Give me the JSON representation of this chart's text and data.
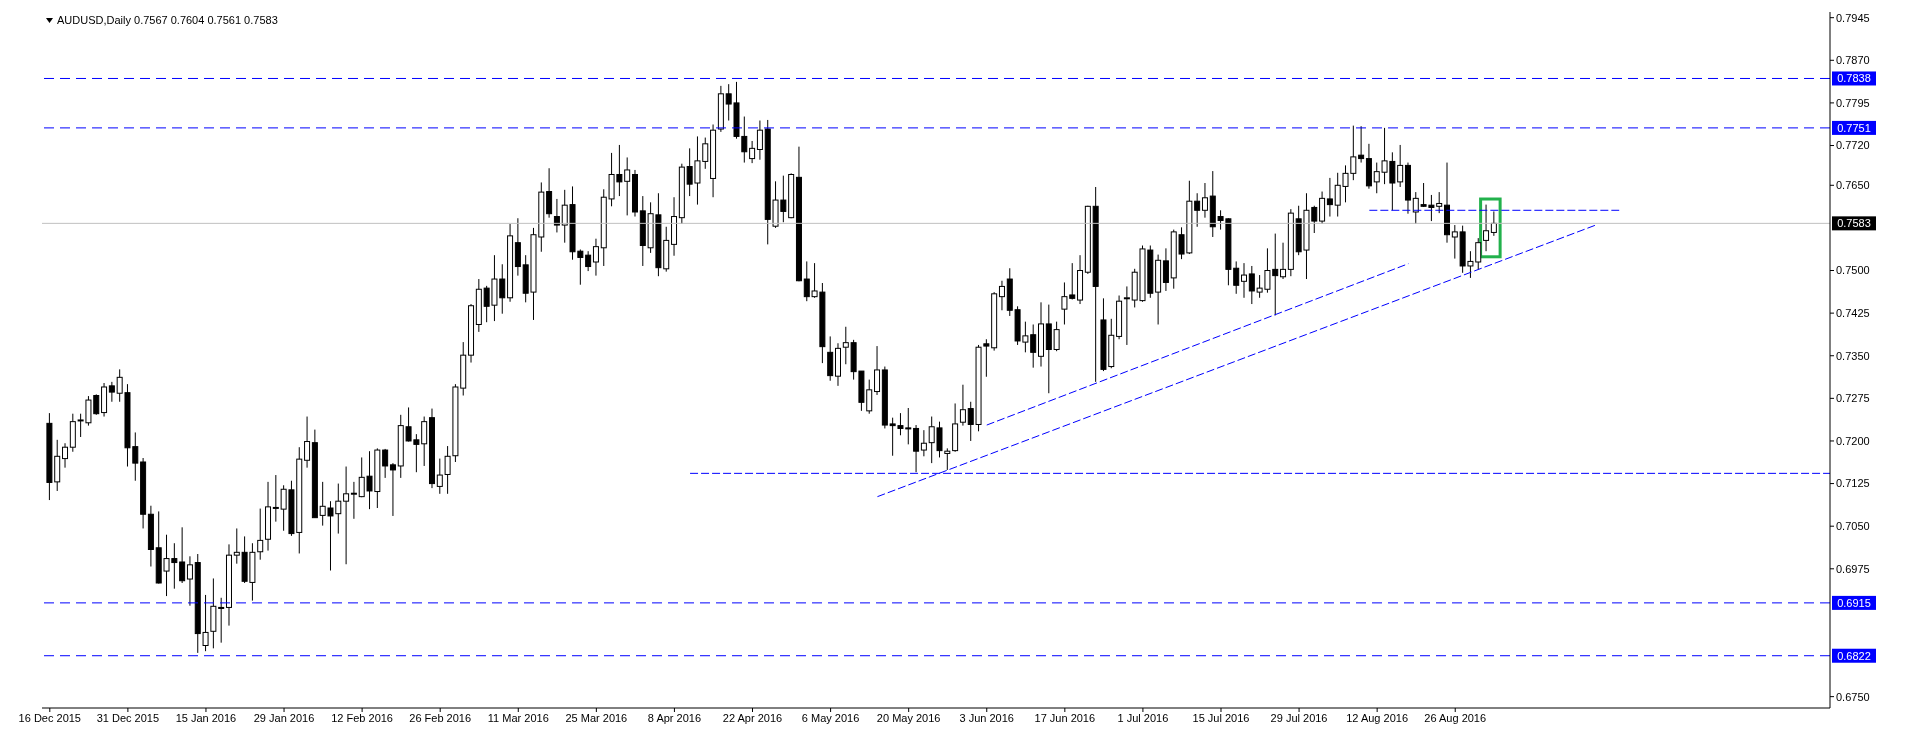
{
  "chart_data": {
    "type": "candlestick",
    "title": "AUDUSD,Daily 0.7567 0.7604 0.7561 0.7583",
    "color": "#000000",
    "categories": [
      "16 Dec 2015",
      null,
      null,
      null,
      null,
      null,
      null,
      null,
      null,
      null,
      "31 Dec 2015",
      null,
      null,
      null,
      null,
      null,
      null,
      null,
      null,
      null,
      "15 Jan 2016",
      null,
      null,
      null,
      null,
      null,
      null,
      null,
      null,
      null,
      "29 Jan 2016",
      null,
      null,
      null,
      null,
      null,
      null,
      null,
      null,
      null,
      "12 Feb 2016",
      null,
      null,
      null,
      null,
      null,
      null,
      null,
      null,
      null,
      "26 Feb 2016",
      null,
      null,
      null,
      null,
      null,
      null,
      null,
      null,
      null,
      "11 Mar 2016",
      null,
      null,
      null,
      null,
      null,
      null,
      null,
      null,
      null,
      "25 Mar 2016",
      null,
      null,
      null,
      null,
      null,
      null,
      null,
      null,
      null,
      "8 Apr 2016",
      null,
      null,
      null,
      null,
      null,
      null,
      null,
      null,
      null,
      "22 Apr 2016",
      null,
      null,
      null,
      null,
      null,
      null,
      null,
      null,
      null,
      "6 May 2016",
      null,
      null,
      null,
      null,
      null,
      null,
      null,
      null,
      null,
      "20 May 2016",
      null,
      null,
      null,
      null,
      null,
      null,
      null,
      null,
      null,
      "3 Jun 2016",
      null,
      null,
      null,
      null,
      null,
      null,
      null,
      null,
      null,
      "17 Jun 2016",
      null,
      null,
      null,
      null,
      null,
      null,
      null,
      null,
      null,
      "1 Jul 2016",
      null,
      null,
      null,
      null,
      null,
      null,
      null,
      null,
      null,
      "15 Jul 2016",
      null,
      null,
      null,
      null,
      null,
      null,
      null,
      null,
      null,
      "29 Jul 2016",
      null,
      null,
      null,
      null,
      null,
      null,
      null,
      null,
      null,
      "12 Aug 2016",
      null,
      null,
      null,
      null,
      null,
      null,
      null,
      null,
      null,
      "26 Aug 2016",
      null,
      null,
      null,
      null,
      null,
      null,
      null,
      null,
      null,
      null,
      null,
      null,
      null,
      null,
      null,
      null,
      null,
      null,
      null,
      null,
      null,
      null,
      null,
      null,
      null,
      null,
      null,
      null,
      null,
      null,
      null,
      null,
      null,
      null,
      null,
      null,
      null,
      null,
      null,
      null,
      null,
      null,
      null,
      null,
      null,
      null,
      null,
      null
    ],
    "ohlc": [
      [
        0.7231,
        0.7249,
        0.7096,
        0.7127
      ],
      [
        0.7128,
        0.7202,
        0.7112,
        0.7173
      ],
      [
        0.7169,
        0.7196,
        0.7153,
        0.7189
      ],
      [
        0.7189,
        0.7248,
        0.7181,
        0.7234
      ],
      [
        0.7236,
        0.7248,
        0.7207,
        0.7237
      ],
      [
        0.7232,
        0.7279,
        0.7227,
        0.7272
      ],
      [
        0.728,
        0.7282,
        0.7246,
        0.7248
      ],
      [
        0.725,
        0.7302,
        0.7243,
        0.7295
      ],
      [
        0.7297,
        0.7304,
        0.7269,
        0.7286
      ],
      [
        0.7284,
        0.7326,
        0.7269,
        0.7312
      ],
      [
        0.7285,
        0.73,
        0.7155,
        0.7188
      ],
      [
        0.719,
        0.7215,
        0.713,
        0.7161
      ],
      [
        0.7163,
        0.717,
        0.7046,
        0.7071
      ],
      [
        0.7071,
        0.7086,
        0.6979,
        0.7009
      ],
      [
        0.7012,
        0.7076,
        0.6949,
        0.695
      ],
      [
        0.6971,
        0.7035,
        0.6927,
        0.6993
      ],
      [
        0.6993,
        0.702,
        0.694,
        0.6986
      ],
      [
        0.6987,
        0.7048,
        0.695,
        0.6954
      ],
      [
        0.6957,
        0.6997,
        0.691,
        0.6982
      ],
      [
        0.6986,
        0.7001,
        0.6827,
        0.6861
      ],
      [
        0.684,
        0.6929,
        0.683,
        0.6863
      ],
      [
        0.6865,
        0.6958,
        0.6835,
        0.6909
      ],
      [
        0.6907,
        0.6924,
        0.6845,
        0.6906
      ],
      [
        0.6907,
        0.7018,
        0.6875,
        0.6999
      ],
      [
        0.6999,
        0.7046,
        0.6984,
        0.7004
      ],
      [
        0.7004,
        0.7032,
        0.695,
        0.6953
      ],
      [
        0.6951,
        0.702,
        0.6919,
        0.7004
      ],
      [
        0.7005,
        0.7081,
        0.6991,
        0.7025
      ],
      [
        0.7027,
        0.7128,
        0.7007,
        0.7084
      ],
      [
        0.7082,
        0.714,
        0.7058,
        0.7083
      ],
      [
        0.708,
        0.7122,
        0.7042,
        0.7115
      ],
      [
        0.7114,
        0.713,
        0.7033,
        0.7037
      ],
      [
        0.7039,
        0.7189,
        0.7002,
        0.7168
      ],
      [
        0.7166,
        0.7243,
        0.7153,
        0.7199
      ],
      [
        0.7197,
        0.722,
        0.7065,
        0.7065
      ],
      [
        0.7069,
        0.7128,
        0.7051,
        0.7085
      ],
      [
        0.7082,
        0.7094,
        0.6972,
        0.7068
      ],
      [
        0.7072,
        0.7125,
        0.7037,
        0.7094
      ],
      [
        0.7094,
        0.7155,
        0.6983,
        0.7107
      ],
      [
        0.7107,
        0.7128,
        0.7063,
        0.7108
      ],
      [
        0.7102,
        0.7171,
        0.7101,
        0.7136
      ],
      [
        0.7138,
        0.7182,
        0.708,
        0.7112
      ],
      [
        0.7111,
        0.7187,
        0.7082,
        0.7184
      ],
      [
        0.7184,
        0.7186,
        0.7135,
        0.7156
      ],
      [
        0.7158,
        0.7161,
        0.7068,
        0.7149
      ],
      [
        0.7156,
        0.7246,
        0.7135,
        0.7227
      ],
      [
        0.7225,
        0.7259,
        0.7199,
        0.72
      ],
      [
        0.7202,
        0.7212,
        0.7145,
        0.7194
      ],
      [
        0.7195,
        0.7243,
        0.7156,
        0.7234
      ],
      [
        0.7241,
        0.7257,
        0.7117,
        0.7125
      ],
      [
        0.712,
        0.7169,
        0.7107,
        0.714
      ],
      [
        0.7141,
        0.7191,
        0.7107,
        0.7173
      ],
      [
        0.7174,
        0.73,
        0.7163,
        0.7295
      ],
      [
        0.7293,
        0.7374,
        0.728,
        0.7351
      ],
      [
        0.7351,
        0.7441,
        0.7338,
        0.7438
      ],
      [
        0.7405,
        0.7485,
        0.7392,
        0.7467
      ],
      [
        0.7469,
        0.7473,
        0.7409,
        0.7437
      ],
      [
        0.7439,
        0.7527,
        0.7411,
        0.7485
      ],
      [
        0.7485,
        0.7511,
        0.7424,
        0.7452
      ],
      [
        0.7452,
        0.7582,
        0.7445,
        0.7561
      ],
      [
        0.7549,
        0.7592,
        0.7491,
        0.7507
      ],
      [
        0.751,
        0.7527,
        0.7444,
        0.746
      ],
      [
        0.7462,
        0.7575,
        0.7413,
        0.7563
      ],
      [
        0.7559,
        0.7655,
        0.7533,
        0.7638
      ],
      [
        0.7639,
        0.768,
        0.7593,
        0.76
      ],
      [
        0.7595,
        0.7626,
        0.7567,
        0.758
      ],
      [
        0.758,
        0.7642,
        0.7549,
        0.7615
      ],
      [
        0.7616,
        0.7648,
        0.7519,
        0.7533
      ],
      [
        0.7534,
        0.7537,
        0.7475,
        0.7523
      ],
      [
        0.7527,
        0.7534,
        0.7499,
        0.7507
      ],
      [
        0.7515,
        0.7556,
        0.7491,
        0.7542
      ],
      [
        0.754,
        0.7643,
        0.7508,
        0.7629
      ],
      [
        0.7626,
        0.7707,
        0.7613,
        0.7669
      ],
      [
        0.7669,
        0.7721,
        0.7631,
        0.7656
      ],
      [
        0.7657,
        0.7699,
        0.7597,
        0.7677
      ],
      [
        0.7669,
        0.7677,
        0.7595,
        0.7603
      ],
      [
        0.7605,
        0.7631,
        0.7508,
        0.7544
      ],
      [
        0.754,
        0.762,
        0.7531,
        0.76
      ],
      [
        0.7598,
        0.7636,
        0.749,
        0.7505
      ],
      [
        0.7503,
        0.7577,
        0.7498,
        0.7553
      ],
      [
        0.7546,
        0.7629,
        0.7526,
        0.7595
      ],
      [
        0.7593,
        0.7688,
        0.7582,
        0.7682
      ],
      [
        0.7683,
        0.7715,
        0.7631,
        0.7652
      ],
      [
        0.7654,
        0.7736,
        0.7616,
        0.7693
      ],
      [
        0.7692,
        0.7734,
        0.7679,
        0.7723
      ],
      [
        0.7662,
        0.7757,
        0.7629,
        0.7747
      ],
      [
        0.7749,
        0.7825,
        0.7744,
        0.7811
      ],
      [
        0.7811,
        0.7828,
        0.7764,
        0.7793
      ],
      [
        0.7795,
        0.7832,
        0.7732,
        0.7736
      ],
      [
        0.7736,
        0.7771,
        0.769,
        0.7709
      ],
      [
        0.7697,
        0.7728,
        0.7689,
        0.7715
      ],
      [
        0.7713,
        0.7764,
        0.7695,
        0.7747
      ],
      [
        0.7749,
        0.7765,
        0.7546,
        0.759
      ],
      [
        0.7578,
        0.7657,
        0.7575,
        0.7624
      ],
      [
        0.7624,
        0.7667,
        0.7585,
        0.7604
      ],
      [
        0.7593,
        0.7671,
        0.7592,
        0.7669
      ],
      [
        0.7664,
        0.7718,
        0.7481,
        0.7482
      ],
      [
        0.7485,
        0.7516,
        0.7446,
        0.7454
      ],
      [
        0.7454,
        0.7513,
        0.7452,
        0.7464
      ],
      [
        0.7462,
        0.7478,
        0.7337,
        0.7366
      ],
      [
        0.7356,
        0.7384,
        0.7306,
        0.7315
      ],
      [
        0.7314,
        0.7372,
        0.7297,
        0.7363
      ],
      [
        0.7365,
        0.7401,
        0.7335,
        0.7373
      ],
      [
        0.7373,
        0.7378,
        0.7308,
        0.7322
      ],
      [
        0.7323,
        0.7323,
        0.7253,
        0.7268
      ],
      [
        0.7253,
        0.7308,
        0.7248,
        0.729
      ],
      [
        0.7287,
        0.7367,
        0.7281,
        0.7325
      ],
      [
        0.7325,
        0.7331,
        0.7222,
        0.7228
      ],
      [
        0.723,
        0.7241,
        0.7174,
        0.7227
      ],
      [
        0.7227,
        0.7249,
        0.721,
        0.7222
      ],
      [
        0.7223,
        0.7258,
        0.7194,
        0.7222
      ],
      [
        0.7222,
        0.7228,
        0.7145,
        0.7182
      ],
      [
        0.7184,
        0.7219,
        0.7173,
        0.7196
      ],
      [
        0.7197,
        0.7243,
        0.7161,
        0.7225
      ],
      [
        0.7223,
        0.7234,
        0.7171,
        0.7183
      ],
      [
        0.7178,
        0.7187,
        0.7149,
        0.7182
      ],
      [
        0.7183,
        0.7266,
        0.7181,
        0.723
      ],
      [
        0.7233,
        0.7299,
        0.7227,
        0.7255
      ],
      [
        0.7257,
        0.7269,
        0.72,
        0.7229
      ],
      [
        0.7229,
        0.7369,
        0.7217,
        0.7365
      ],
      [
        0.7371,
        0.7379,
        0.7313,
        0.7367
      ],
      [
        0.7364,
        0.7462,
        0.7359,
        0.7459
      ],
      [
        0.7454,
        0.7482,
        0.743,
        0.7472
      ],
      [
        0.7485,
        0.7504,
        0.742,
        0.743
      ],
      [
        0.7431,
        0.7437,
        0.7369,
        0.7376
      ],
      [
        0.7374,
        0.741,
        0.7356,
        0.7385
      ],
      [
        0.7387,
        0.7405,
        0.7329,
        0.7356
      ],
      [
        0.7349,
        0.7444,
        0.7331,
        0.7406
      ],
      [
        0.7406,
        0.744,
        0.7284,
        0.7361
      ],
      [
        0.7361,
        0.741,
        0.7358,
        0.7396
      ],
      [
        0.7432,
        0.7479,
        0.7405,
        0.7454
      ],
      [
        0.7457,
        0.7513,
        0.7449,
        0.7451
      ],
      [
        0.7448,
        0.7527,
        0.7441,
        0.75
      ],
      [
        0.7497,
        0.7614,
        0.7494,
        0.7613
      ],
      [
        0.7613,
        0.7647,
        0.7304,
        0.7472
      ],
      [
        0.7413,
        0.7451,
        0.7323,
        0.7326
      ],
      [
        0.7331,
        0.7415,
        0.7328,
        0.7386
      ],
      [
        0.7384,
        0.7456,
        0.7379,
        0.7446
      ],
      [
        0.7451,
        0.7472,
        0.7369,
        0.7452
      ],
      [
        0.7448,
        0.7503,
        0.7435,
        0.7497
      ],
      [
        0.7447,
        0.7544,
        0.7445,
        0.7538
      ],
      [
        0.7536,
        0.7544,
        0.7452,
        0.746
      ],
      [
        0.7462,
        0.7528,
        0.7405,
        0.7518
      ],
      [
        0.7517,
        0.7539,
        0.7464,
        0.7479
      ],
      [
        0.7487,
        0.7572,
        0.7468,
        0.7568
      ],
      [
        0.7563,
        0.7576,
        0.752,
        0.7529
      ],
      [
        0.7531,
        0.7658,
        0.7529,
        0.7622
      ],
      [
        0.7622,
        0.7636,
        0.7577,
        0.7606
      ],
      [
        0.7606,
        0.7654,
        0.7593,
        0.7628
      ],
      [
        0.7631,
        0.7675,
        0.7559,
        0.7577
      ],
      [
        0.7595,
        0.7606,
        0.7572,
        0.7588
      ],
      [
        0.7591,
        0.7592,
        0.7474,
        0.7502
      ],
      [
        0.7504,
        0.7516,
        0.7459,
        0.7474
      ],
      [
        0.7481,
        0.7513,
        0.7452,
        0.7492
      ],
      [
        0.7494,
        0.7508,
        0.7441,
        0.7464
      ],
      [
        0.7462,
        0.7492,
        0.7452,
        0.7469
      ],
      [
        0.7467,
        0.7539,
        0.7461,
        0.75
      ],
      [
        0.7502,
        0.7565,
        0.7421,
        0.7491
      ],
      [
        0.7489,
        0.7549,
        0.7485,
        0.7502
      ],
      [
        0.7502,
        0.7608,
        0.749,
        0.7601
      ],
      [
        0.7591,
        0.7614,
        0.7527,
        0.7533
      ],
      [
        0.7536,
        0.7636,
        0.7485,
        0.7606
      ],
      [
        0.7611,
        0.7614,
        0.7566,
        0.7587
      ],
      [
        0.7587,
        0.7639,
        0.7582,
        0.7627
      ],
      [
        0.7626,
        0.7663,
        0.7595,
        0.7616
      ],
      [
        0.7615,
        0.7672,
        0.7595,
        0.765
      ],
      [
        0.7648,
        0.7685,
        0.762,
        0.7671
      ],
      [
        0.7671,
        0.7755,
        0.7659,
        0.77
      ],
      [
        0.7703,
        0.7754,
        0.769,
        0.7697
      ],
      [
        0.7697,
        0.7723,
        0.7644,
        0.7649
      ],
      [
        0.7656,
        0.769,
        0.7636,
        0.7674
      ],
      [
        0.7673,
        0.7751,
        0.7652,
        0.7693
      ],
      [
        0.7692,
        0.7708,
        0.7606,
        0.7654
      ],
      [
        0.7656,
        0.7721,
        0.7647,
        0.7685
      ],
      [
        0.7685,
        0.769,
        0.76,
        0.7624
      ],
      [
        0.7603,
        0.7638,
        0.7582,
        0.7627
      ],
      [
        0.7616,
        0.7654,
        0.7612,
        0.7613
      ],
      [
        0.7615,
        0.7633,
        0.7587,
        0.7611
      ],
      [
        0.7613,
        0.7638,
        0.7601,
        0.7618
      ],
      [
        0.7615,
        0.769,
        0.7549,
        0.7563
      ],
      [
        0.7559,
        0.758,
        0.7521,
        0.7568
      ],
      [
        0.7568,
        0.7579,
        0.7496,
        0.7508
      ],
      [
        0.7508,
        0.7534,
        0.7487,
        0.7516
      ],
      [
        0.7515,
        0.7557,
        0.7502,
        0.7549
      ],
      [
        0.7553,
        0.7616,
        0.7534,
        0.757
      ],
      [
        0.7567,
        0.7604,
        0.7561,
        0.7583
      ],
      null,
      null,
      null,
      null,
      null,
      null,
      null,
      null,
      null,
      null,
      null,
      null,
      null,
      null,
      null,
      null,
      null,
      null,
      null,
      null,
      null,
      null,
      null,
      null,
      null,
      null,
      null,
      null,
      null,
      null,
      null,
      null,
      null,
      null,
      null,
      null,
      null,
      null,
      null,
      null,
      null,
      null,
      null
    ],
    "ylim": [
      0.673,
      0.7955
    ],
    "yticks": [
      0.7945,
      {
        "value": 0.787,
        "label": "0.7870"
      },
      0.7795,
      {
        "value": 0.772,
        "label": "0.7720"
      },
      {
        "value": 0.765,
        "label": "0.7650"
      },
      {
        "value": 0.75,
        "label": "0.7500"
      },
      0.7425,
      {
        "value": 0.735,
        "label": "0.7350"
      },
      0.7275,
      {
        "value": 0.72,
        "label": "0.7200"
      },
      0.7125,
      {
        "value": 0.705,
        "label": "0.7050"
      },
      0.6975,
      {
        "value": 0.675,
        "label": "0.6750"
      }
    ],
    "ref_lines": [
      {
        "axis": "y",
        "value": 0.7838,
        "label": "0.7838",
        "color": "#0000ff",
        "line_style": "dashed"
      },
      {
        "axis": "y",
        "value": 0.7751,
        "label": "0.7751",
        "color": "#0000ff",
        "line_style": "dashed"
      },
      {
        "axis": "y",
        "value": 0.7583,
        "label": "0.7583",
        "color": "#c0c0c0",
        "line_style": "solid"
      },
      {
        "axis": "y",
        "value": 0.6915,
        "label": "0.6915",
        "color": "#0000ff",
        "line_style": "dashed"
      },
      {
        "axis": "y",
        "value": 0.6822,
        "label": "0.6822",
        "color": "#0000ff",
        "line_style": "dashed"
      }
    ],
    "series": [
      {
        "type": "line",
        "color": "#0000ff",
        "line_style": "dashed",
        "values": [
          null,
          null,
          null,
          null,
          null,
          null,
          null,
          null,
          null,
          null,
          null,
          null,
          null,
          null,
          null,
          null,
          null,
          null,
          null,
          null,
          null,
          null,
          null,
          null,
          null,
          null,
          null,
          null,
          null,
          null,
          null,
          null,
          null,
          null,
          null,
          null,
          null,
          null,
          null,
          null,
          null,
          null,
          null,
          null,
          null,
          null,
          null,
          null,
          null,
          null,
          null,
          null,
          null,
          null,
          null,
          null,
          null,
          null,
          null,
          null,
          null,
          null,
          null,
          null,
          null,
          null,
          null,
          null,
          null,
          null,
          null,
          null,
          null,
          null,
          null,
          null,
          null,
          null,
          null,
          null,
          null,
          null,
          0.7143,
          null,
          null,
          null,
          null,
          null,
          null,
          null,
          null,
          null,
          null,
          null,
          null,
          null,
          null,
          null,
          null,
          null,
          null,
          null,
          null,
          null,
          null,
          null,
          null,
          null,
          null,
          null,
          null,
          null,
          null,
          null,
          null,
          null,
          null,
          null,
          null,
          null,
          null,
          null,
          null,
          null,
          null,
          null,
          null,
          null,
          null,
          null,
          null,
          null,
          null,
          null,
          null,
          null,
          null,
          null,
          null,
          null,
          null,
          null,
          null,
          null,
          null,
          null,
          null,
          null,
          null,
          null,
          null,
          null,
          null,
          null,
          null,
          null,
          null,
          null,
          null,
          null,
          null,
          null,
          null,
          null,
          null,
          null,
          null,
          null,
          null,
          null,
          null,
          null,
          null,
          null,
          null,
          null,
          null,
          null,
          null,
          null,
          null,
          null,
          null,
          null,
          null,
          null,
          null,
          null,
          null,
          null,
          null,
          null,
          null,
          null,
          null,
          null,
          null,
          null,
          null,
          null,
          null,
          null,
          null,
          null,
          null,
          null,
          null,
          null,
          null,
          null,
          null,
          null,
          null,
          null,
          null,
          null,
          null,
          null,
          null,
          null,
          null,
          null,
          null,
          null,
          null,
          null,
          null,
          null,
          0.7143
        ]
      },
      {
        "type": "line",
        "color": "#0000ff",
        "line_style": "dashed",
        "values": [
          null,
          null,
          null,
          null,
          null,
          null,
          null,
          null,
          null,
          null,
          null,
          null,
          null,
          null,
          null,
          null,
          null,
          null,
          null,
          null,
          null,
          null,
          null,
          null,
          null,
          null,
          null,
          null,
          null,
          null,
          null,
          null,
          null,
          null,
          null,
          null,
          null,
          null,
          null,
          null,
          null,
          null,
          null,
          null,
          null,
          null,
          null,
          null,
          null,
          null,
          null,
          null,
          null,
          null,
          null,
          null,
          null,
          null,
          null,
          null,
          null,
          null,
          null,
          null,
          null,
          null,
          null,
          null,
          null,
          null,
          null,
          null,
          null,
          null,
          null,
          null,
          null,
          null,
          null,
          null,
          null,
          null,
          null,
          null,
          null,
          null,
          null,
          null,
          null,
          null,
          null,
          null,
          null,
          null,
          null,
          null,
          null,
          null,
          null,
          null,
          null,
          null,
          null,
          null,
          null,
          null,
          null,
          null,
          null,
          null,
          null,
          null,
          null,
          null,
          null,
          null,
          null,
          null,
          null,
          null,
          null,
          null,
          null,
          null,
          null,
          null,
          null,
          null,
          null,
          null,
          null,
          null,
          null,
          null,
          null,
          null,
          null,
          null,
          null,
          null,
          null,
          null,
          null,
          null,
          null,
          null,
          null,
          null,
          null,
          null,
          null,
          null,
          null,
          null,
          null,
          null,
          null,
          null,
          null,
          null,
          null,
          null,
          null,
          null,
          null,
          null,
          null,
          null,
          null,
          0.7606,
          null,
          null,
          null,
          null,
          null,
          null,
          null,
          null,
          null,
          null,
          null,
          null,
          null,
          null,
          null,
          null,
          null,
          null,
          null,
          null,
          null,
          null,
          null,
          null,
          null,
          null,
          null,
          null,
          null,
          null,
          null,
          0.7606,
          null,
          null,
          null,
          null,
          null,
          null,
          null,
          null,
          null,
          null,
          null,
          null,
          null,
          null,
          null,
          null,
          null,
          null,
          null,
          null,
          null,
          null,
          null,
          null,
          null,
          null,
          null
        ]
      },
      {
        "type": "line",
        "color": "#0000ff",
        "line_style": "dashed",
        "values": [
          null,
          null,
          null,
          null,
          null,
          null,
          null,
          null,
          null,
          null,
          null,
          null,
          null,
          null,
          null,
          null,
          null,
          null,
          null,
          null,
          null,
          null,
          null,
          null,
          null,
          null,
          null,
          null,
          null,
          null,
          null,
          null,
          null,
          null,
          null,
          null,
          null,
          null,
          null,
          null,
          null,
          null,
          null,
          null,
          null,
          null,
          null,
          null,
          null,
          null,
          null,
          null,
          null,
          null,
          null,
          null,
          null,
          null,
          null,
          null,
          null,
          null,
          null,
          null,
          null,
          null,
          null,
          null,
          null,
          null,
          null,
          null,
          null,
          null,
          null,
          null,
          null,
          null,
          null,
          null,
          null,
          null,
          null,
          null,
          null,
          null,
          null,
          null,
          null,
          null,
          null,
          null,
          null,
          null,
          null,
          null,
          null,
          null,
          null,
          null,
          null,
          null,
          null,
          null,
          null,
          null,
          0.7102,
          null,
          null,
          null,
          null,
          null,
          null,
          null,
          null,
          null,
          null,
          null,
          null,
          null,
          null,
          null,
          null,
          null,
          null,
          null,
          null,
          null,
          null,
          null,
          null,
          null,
          null,
          null,
          null,
          null,
          null,
          null,
          null,
          null,
          null,
          null,
          null,
          null,
          null,
          null,
          null,
          null,
          null,
          null,
          null,
          null,
          null,
          null,
          null,
          null,
          null,
          null,
          null,
          null,
          null,
          null,
          null,
          null,
          null,
          null,
          null,
          null,
          null,
          null,
          null,
          null,
          null,
          null,
          null,
          null,
          null,
          null,
          null,
          null,
          null,
          null,
          null,
          null,
          null,
          null,
          null,
          null,
          null,
          null,
          null,
          null,
          null,
          null,
          null,
          null,
          null,
          null,
          0.758,
          null,
          null,
          null,
          null,
          null,
          null,
          null,
          null,
          null,
          null,
          null,
          null,
          null,
          null,
          null,
          null,
          null,
          null,
          null,
          null,
          null,
          null,
          null,
          null,
          null,
          null,
          null,
          null,
          null,
          null
        ]
      },
      {
        "type": "line",
        "color": "#0000ff",
        "line_style": "dashed",
        "values": [
          null,
          null,
          null,
          null,
          null,
          null,
          null,
          null,
          null,
          null,
          null,
          null,
          null,
          null,
          null,
          null,
          null,
          null,
          null,
          null,
          null,
          null,
          null,
          null,
          null,
          null,
          null,
          null,
          null,
          null,
          null,
          null,
          null,
          null,
          null,
          null,
          null,
          null,
          null,
          null,
          null,
          null,
          null,
          null,
          null,
          null,
          null,
          null,
          null,
          null,
          null,
          null,
          null,
          null,
          null,
          null,
          null,
          null,
          null,
          null,
          null,
          null,
          null,
          null,
          null,
          null,
          null,
          null,
          null,
          null,
          null,
          null,
          null,
          null,
          null,
          null,
          null,
          null,
          null,
          null,
          null,
          null,
          null,
          null,
          null,
          null,
          null,
          null,
          null,
          null,
          null,
          null,
          null,
          null,
          null,
          null,
          null,
          null,
          null,
          null,
          null,
          null,
          null,
          null,
          null,
          null,
          null,
          null,
          null,
          null,
          null,
          null,
          null,
          null,
          null,
          null,
          null,
          null,
          null,
          null,
          0.7228,
          null,
          null,
          null,
          null,
          null,
          null,
          null,
          null,
          null,
          null,
          null,
          null,
          null,
          null,
          null,
          null,
          null,
          null,
          null,
          null,
          null,
          null,
          null,
          null,
          null,
          null,
          null,
          null,
          null,
          null,
          null,
          null,
          null,
          null,
          null,
          null,
          null,
          null,
          null,
          null,
          null,
          null,
          null,
          null,
          null,
          null,
          null,
          null,
          null,
          null,
          null,
          null,
          null,
          0.7512,
          null,
          null,
          null,
          null,
          null,
          null,
          null,
          null,
          null,
          null,
          null,
          null,
          null,
          null,
          null,
          null,
          null,
          null,
          null,
          null,
          null,
          null,
          null,
          null,
          null,
          null,
          null,
          null,
          null,
          null,
          null,
          null,
          null,
          null,
          null,
          null,
          null,
          null,
          null,
          null,
          null,
          null,
          null,
          null,
          null,
          null,
          null,
          null,
          null,
          null,
          null,
          null,
          null,
          null
        ]
      }
    ]
  }
}
